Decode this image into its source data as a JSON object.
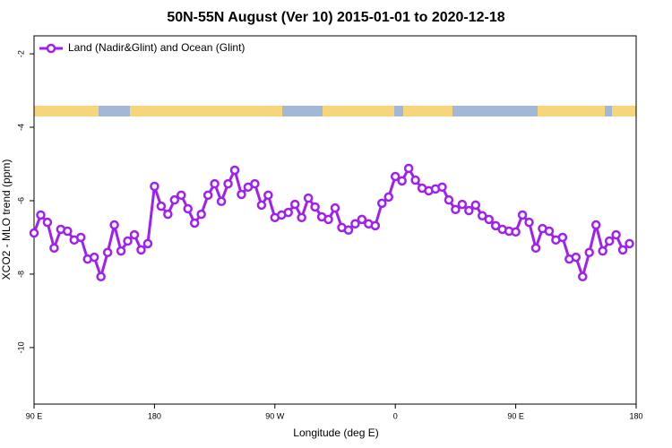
{
  "chart_data": {
    "type": "line",
    "title": "50N-55N August (Ver 10)   2015-01-01 to 2020-12-18",
    "x_label": "Longitude (deg E)",
    "y_label": "XCO2 - MLO trend (ppm)",
    "legend_position": "top-left",
    "xlim": [
      90,
      540
    ],
    "ylim": [
      -11.54,
      -1.51
    ],
    "xticks": [
      {
        "value": 90,
        "label": "90 E"
      },
      {
        "value": 180,
        "label": "180"
      },
      {
        "value": 270,
        "label": "90 W"
      },
      {
        "value": 360,
        "label": "0"
      },
      {
        "value": 450,
        "label": "90 E"
      },
      {
        "value": 540,
        "label": "180"
      }
    ],
    "yticks": [
      -10,
      -8,
      -6,
      -4,
      -2
    ],
    "x": [
      90,
      95,
      100,
      105,
      110,
      115,
      120,
      125,
      130,
      135,
      140,
      145,
      150,
      155,
      160,
      165,
      170,
      175,
      180,
      185,
      190,
      195,
      200,
      205,
      210,
      215,
      220,
      225,
      230,
      235,
      240,
      245,
      250,
      255,
      260,
      265,
      270,
      275,
      280,
      285,
      290,
      295,
      300,
      305,
      310,
      315,
      320,
      325,
      330,
      335,
      340,
      345,
      350,
      355,
      360,
      365,
      370,
      375,
      380,
      385,
      390,
      395,
      400,
      405,
      410,
      415,
      420,
      425,
      430,
      435,
      440,
      445,
      450,
      455,
      460,
      465,
      470,
      475,
      480,
      485,
      490,
      495,
      500,
      505,
      510,
      515,
      520,
      525,
      530,
      535
    ],
    "series": [
      {
        "name": "Land (Nadir&Glint) and Ocean (Glint)",
        "color": "#a020f0",
        "values": [
          -6.88,
          -6.39,
          -6.59,
          -7.29,
          -6.78,
          -6.83,
          -7.07,
          -7.0,
          -7.59,
          -7.54,
          -8.07,
          -7.41,
          -6.66,
          -7.37,
          -7.1,
          -6.93,
          -7.34,
          -7.17,
          -5.61,
          -6.15,
          -6.37,
          -5.98,
          -5.85,
          -6.22,
          -6.61,
          -6.37,
          -5.85,
          -5.54,
          -6.02,
          -5.54,
          -5.17,
          -5.83,
          -5.63,
          -5.54,
          -6.12,
          -5.85,
          -6.46,
          -6.39,
          -6.32,
          -6.1,
          -6.46,
          -5.93,
          -6.17,
          -6.44,
          -6.51,
          -6.2,
          -6.73,
          -6.8,
          -6.63,
          -6.51,
          -6.63,
          -6.68,
          -6.07,
          -5.9,
          -5.34,
          -5.46,
          -5.12,
          -5.44,
          -5.66,
          -5.73,
          -5.68,
          -5.63,
          -5.98,
          -6.24,
          -6.1,
          -6.27,
          -6.12,
          -6.41,
          -6.51,
          -6.68,
          -6.78,
          -6.83,
          -6.85,
          -6.39,
          -6.59,
          -7.29,
          -6.76,
          -6.83,
          -7.07,
          -7.0,
          -7.59,
          -7.54,
          -8.07,
          -7.41,
          -6.66,
          -7.37,
          -7.1,
          -6.93,
          -7.34,
          -7.17
        ]
      }
    ]
  }
}
